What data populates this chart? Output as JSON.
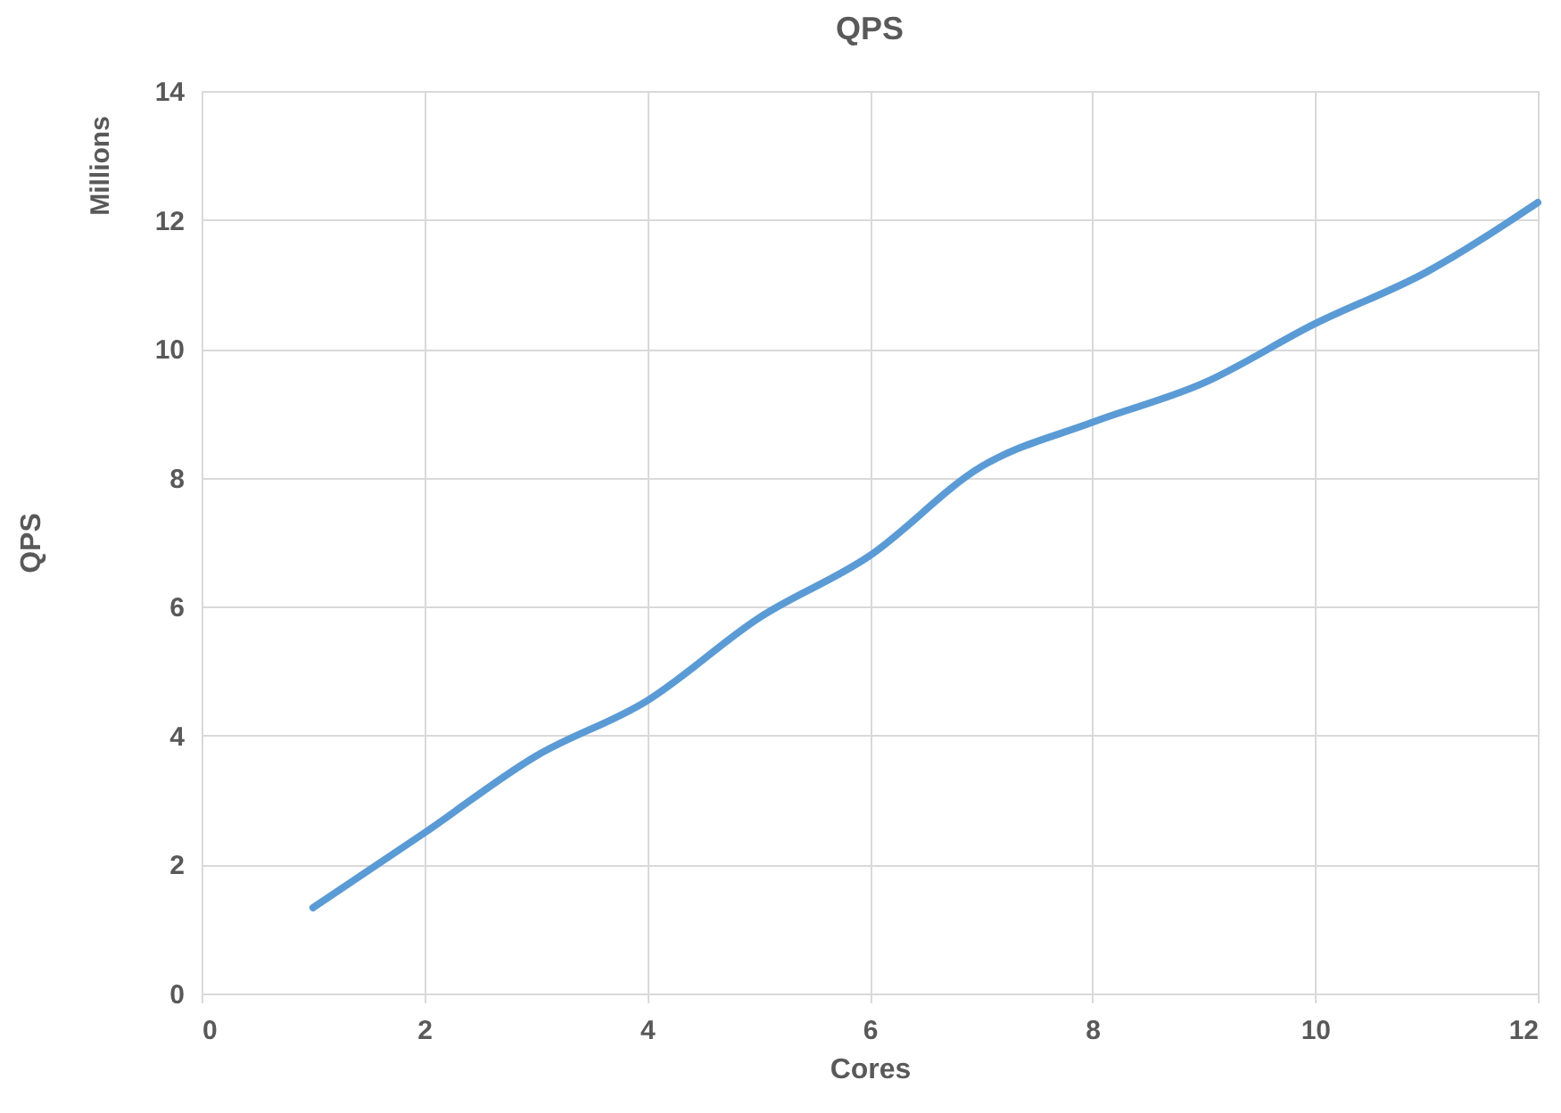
{
  "chart_data": {
    "type": "line",
    "title": "QPS",
    "xlabel": "Cores",
    "ylabel": "QPS",
    "annotations": [
      "Millions"
    ],
    "x": [
      1,
      2,
      3,
      4,
      5,
      6,
      7,
      8,
      9,
      10,
      11,
      12
    ],
    "series": [
      {
        "color": "#5b9bd5",
        "values": [
          1.33,
          2.49,
          3.68,
          4.54,
          5.82,
          6.79,
          8.17,
          8.86,
          9.47,
          10.39,
          11.19,
          12.27
        ]
      }
    ],
    "xlim": [
      0,
      12
    ],
    "xticks": [
      0,
      2,
      4,
      6,
      8,
      10,
      12
    ],
    "ylim": [
      0,
      14
    ],
    "yticks": [
      0,
      2,
      4,
      6,
      8,
      10,
      12,
      14
    ],
    "grid": true,
    "legend": false,
    "marker": "none",
    "line_style": "solid"
  }
}
